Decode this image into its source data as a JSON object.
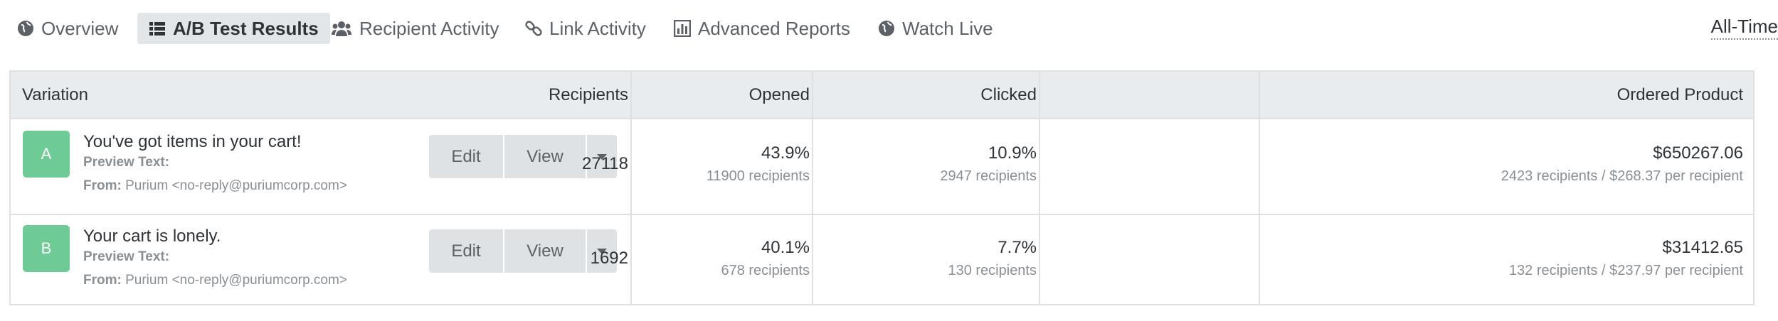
{
  "nav": {
    "tabs": [
      "Overview",
      "A/B Test Results",
      "Recipient Activity",
      "Link Activity",
      "Advanced Reports",
      "Watch Live"
    ],
    "date_range": "All-Time"
  },
  "table": {
    "columns": [
      "Variation",
      "Recipients",
      "Opened",
      "Clicked",
      "Ordered Product"
    ],
    "rows": [
      {
        "badge": "A",
        "subject": "You've got items in your cart!",
        "preview_label": "Preview Text:",
        "from_label": "From:",
        "from": "Purium <no-reply@puriumcorp.com>",
        "buttons": [
          "Edit",
          "View"
        ],
        "recipients": "27118",
        "opened": "43.9%",
        "opened_sub": "11900 recipients",
        "clicked": "10.9%",
        "clicked_sub": "2947 recipients",
        "ordered": "$650267.06",
        "ordered_sub": "2423 recipients / $268.37 per recipient"
      },
      {
        "badge": "B",
        "subject": "Your cart is lonely.",
        "preview_label": "Preview Text:",
        "from_label": "From:",
        "from": "Purium <no-reply@puriumcorp.com>",
        "buttons": [
          "Edit",
          "View"
        ],
        "recipients": "1692",
        "opened": "40.1%",
        "opened_sub": "678 recipients",
        "clicked": "7.7%",
        "clicked_sub": "130 recipients",
        "ordered": "$31412.65",
        "ordered_sub": "132 recipients / $237.97 per recipient"
      }
    ]
  }
}
